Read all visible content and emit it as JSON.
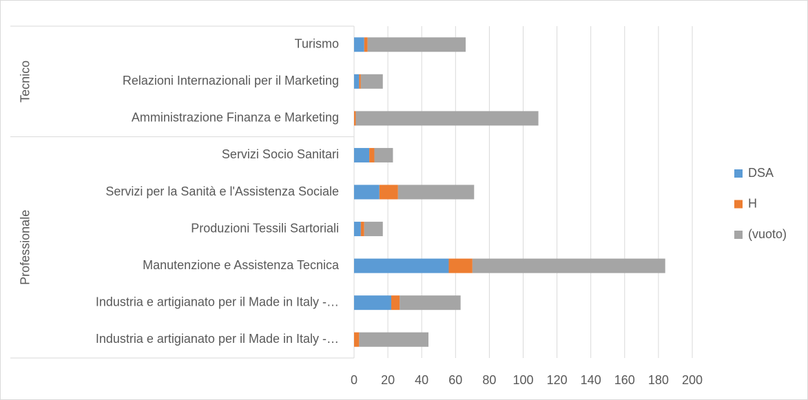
{
  "chart_data": {
    "type": "stacked_bar_horizontal",
    "groups": [
      {
        "name": "Tecnico",
        "categories": [
          "Turismo",
          "Relazioni Internazionali per il Marketing",
          "Amministrazione Finanza e Marketing"
        ]
      },
      {
        "name": "Professionale",
        "categories": [
          "Servizi Socio Sanitari",
          "Servizi per la Sanità e l'Assistenza Sociale",
          "Produzioni Tessili Sartoriali",
          "Manutenzione e Assistenza Tecnica",
          "Industria e artigianato per il Made in Italy -…",
          "Industria e artigianato per il Made in Italy -…"
        ]
      }
    ],
    "series": [
      {
        "name": "DSA",
        "color": "#5b9bd5",
        "values": [
          6,
          3,
          0,
          9,
          15,
          4,
          56,
          22,
          0
        ]
      },
      {
        "name": "H",
        "color": "#ed7d31",
        "values": [
          2,
          1,
          1,
          3,
          11,
          2,
          14,
          5,
          3
        ]
      },
      {
        "name": "(vuoto)",
        "color": "#a5a5a5",
        "values": [
          58,
          13,
          108,
          11,
          45,
          11,
          114,
          36,
          41
        ]
      }
    ],
    "xlim": [
      0,
      200
    ],
    "xticks": [
      0,
      20,
      40,
      60,
      80,
      100,
      120,
      140,
      160,
      180,
      200
    ],
    "grid": true,
    "legend": "right"
  }
}
